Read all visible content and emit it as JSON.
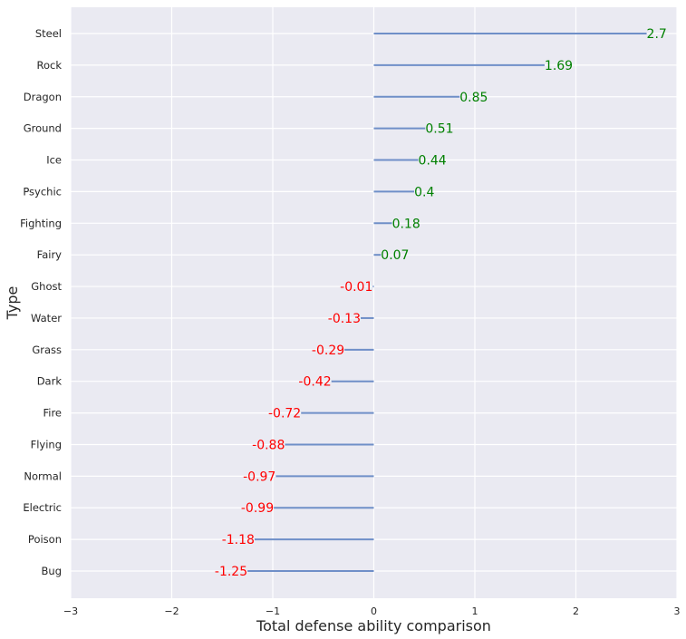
{
  "chart_data": {
    "type": "bar",
    "orientation": "horizontal",
    "style": "lollipop-lines-from-zero",
    "xlabel": "Total defense ability comparison",
    "ylabel": "Type",
    "xlim": [
      -3,
      3
    ],
    "xticks": [
      -3,
      -2,
      -1,
      0,
      1,
      2,
      3
    ],
    "xtick_labels": [
      "−3",
      "−2",
      "−1",
      "0",
      "1",
      "2",
      "3"
    ],
    "categories": [
      "Steel",
      "Rock",
      "Dragon",
      "Ground",
      "Ice",
      "Psychic",
      "Fighting",
      "Fairy",
      "Ghost",
      "Water",
      "Grass",
      "Dark",
      "Fire",
      "Flying",
      "Normal",
      "Electric",
      "Poison",
      "Bug"
    ],
    "values": [
      2.7,
      1.69,
      0.85,
      0.51,
      0.44,
      0.4,
      0.18,
      0.07,
      -0.01,
      -0.13,
      -0.29,
      -0.42,
      -0.72,
      -0.88,
      -0.97,
      -0.99,
      -1.18,
      -1.25
    ],
    "value_labels": [
      "2.7",
      "1.69",
      "0.85",
      "0.51",
      "0.44",
      "0.4",
      "0.18",
      "0.07",
      "-0.01",
      "-0.13",
      "-0.29",
      "-0.42",
      "-0.72",
      "-0.88",
      "-0.97",
      "-0.99",
      "-1.18",
      "-1.25"
    ],
    "colors": {
      "plot_background": "#eaeaf2",
      "grid": "#ffffff",
      "line": "#6f8fc8",
      "positive_label": "#008000",
      "negative_label": "#ff0000",
      "axis_text": "#262626"
    }
  }
}
